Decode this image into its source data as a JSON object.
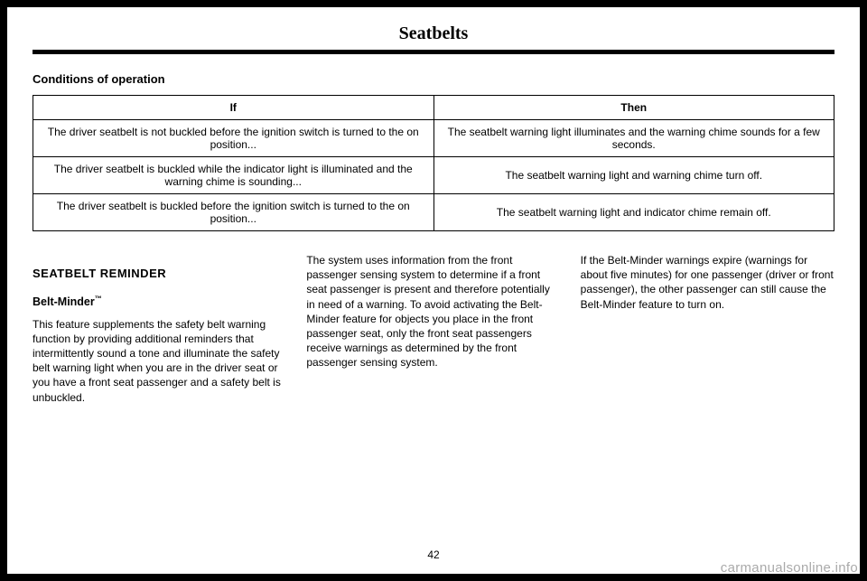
{
  "header": {
    "title": "Seatbelts"
  },
  "section_heading": "Conditions of operation",
  "table": {
    "columns": [
      "If",
      "Then"
    ],
    "rows": [
      [
        "The driver seatbelt is not buckled before the ignition switch is turned to the on position...",
        "The seatbelt warning light illuminates and the warning chime sounds for a few seconds."
      ],
      [
        "The driver seatbelt is buckled while the indicator light is illuminated and the warning chime is sounding...",
        "The seatbelt warning light and warning chime turn off."
      ],
      [
        "The driver seatbelt is buckled before the ignition switch is turned to the on position...",
        "The seatbelt warning light and indicator chime remain off."
      ]
    ]
  },
  "body": {
    "col1": {
      "h2": "SEATBELT REMINDER",
      "h3_prefix": "Belt-Minder",
      "h3_tm": "™",
      "p1": "This feature supplements the safety belt warning function by providing additional reminders that intermittently sound a tone and illuminate the safety belt warning light when you are in the driver seat or you have a front seat passenger and a safety belt is unbuckled."
    },
    "col2": {
      "p1": "The system uses information from the front passenger sensing system to determine if a front seat passenger is present and therefore potentially in need of a warning. To avoid activating the Belt-Minder feature for objects you place in the front passenger seat, only the front seat passengers receive warnings as determined by the front passenger sensing system."
    },
    "col3": {
      "p1": "If the Belt-Minder warnings expire (warnings for about five minutes) for one passenger (driver or front passenger), the other passenger can still cause the Belt-Minder feature to turn on."
    }
  },
  "page_number": "42",
  "watermark": "carmanualsonline.info"
}
